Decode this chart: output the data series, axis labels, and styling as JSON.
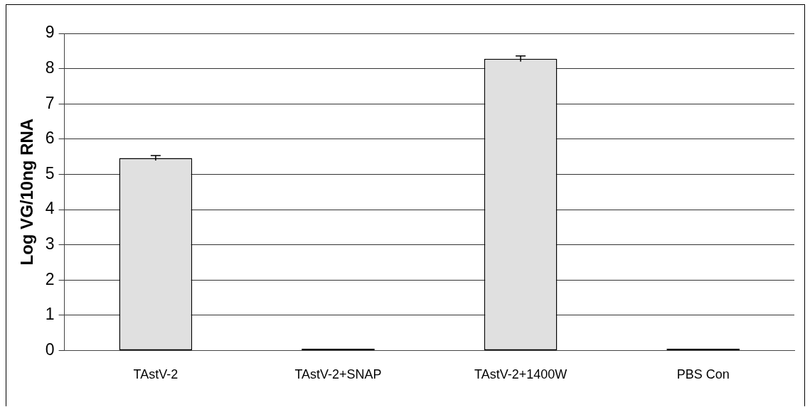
{
  "chart_data": {
    "type": "bar",
    "ylabel": "Log VG/10ng RNA",
    "categories": [
      "TAstV-2",
      "TAstV-2+SNAP",
      "TAstV-2+1400W",
      "PBS Con"
    ],
    "values": [
      5.46,
      0.05,
      8.28,
      0.05
    ],
    "errors": [
      0.07,
      null,
      0.08,
      null
    ],
    "colors": [
      "#e0e0e0",
      "#000000",
      "#e0e0e0",
      "#000000"
    ],
    "ylim": [
      0,
      9
    ],
    "yticks": [
      0,
      1,
      2,
      3,
      4,
      5,
      6,
      7,
      8,
      9
    ],
    "grid": "y",
    "legend": false
  }
}
